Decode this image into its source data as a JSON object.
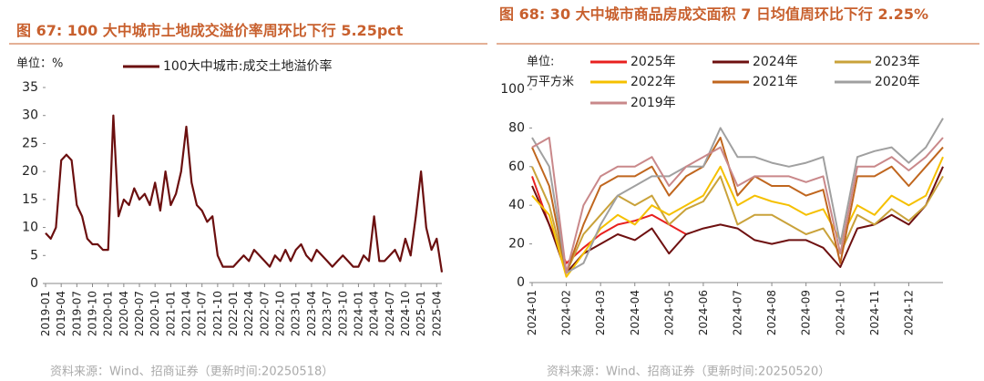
{
  "chart_data": [
    {
      "type": "line",
      "title": "图 67: 100 大中城市土地成交溢价率周环比下行 5.25pct",
      "unit": "单位：%",
      "source": "资料来源：Wind、招商证券（更新时间:20250518）",
      "categories": [
        "2019-01",
        null,
        null,
        "2019-04",
        null,
        null,
        "2019-07",
        null,
        null,
        "2019-10",
        null,
        null,
        "2020-01",
        null,
        null,
        "2020-04",
        null,
        null,
        "2020-07",
        null,
        null,
        "2020-10",
        null,
        null,
        "2021-01",
        null,
        null,
        "2021-04",
        null,
        null,
        "2021-07",
        null,
        null,
        "2021-10",
        null,
        null,
        "2022-01",
        null,
        null,
        "2022-04",
        null,
        null,
        "2022-07",
        null,
        null,
        "2022-10",
        null,
        null,
        "2023-01",
        null,
        null,
        "2023-04",
        null,
        null,
        "2023-07",
        null,
        null,
        "2023-10",
        null,
        null,
        "2024-01",
        null,
        null,
        "2024-04",
        null,
        null,
        "2024-07",
        null,
        null,
        "2024-10",
        null,
        null,
        "2025-01",
        null,
        null,
        "2025-04",
        null
      ],
      "series": [
        {
          "name": "100大中城市:成交土地溢价率",
          "color": "#6b0f0f",
          "values": [
            9,
            8,
            10,
            22,
            23,
            22,
            14,
            12,
            8,
            7,
            7,
            6,
            6,
            30,
            12,
            15,
            14,
            17,
            15,
            16,
            14,
            18,
            13,
            20,
            14,
            16,
            20,
            28,
            18,
            14,
            13,
            11,
            12,
            5,
            3,
            3,
            3,
            4,
            5,
            4,
            6,
            5,
            4,
            3,
            5,
            4,
            6,
            4,
            6,
            7,
            5,
            4,
            6,
            5,
            4,
            3,
            4,
            5,
            4,
            3,
            3,
            5,
            4,
            12,
            4,
            4,
            5,
            6,
            4,
            8,
            5,
            12,
            20,
            10,
            6,
            8,
            2
          ]
        }
      ],
      "ylim": [
        0,
        35
      ],
      "yticks": [
        0,
        5,
        10,
        15,
        20,
        25,
        30,
        35
      ]
    },
    {
      "type": "line",
      "title": "图 68:  30 大中城市商品房成交面积 7 日均值周环比下行 2.25%",
      "unit": "单位:",
      "unit2": "万平方米",
      "source": "资料来源：Wind、招商证券（更新时间:20250520）",
      "categories": [
        "2024-01",
        null,
        "2024-02",
        null,
        "2024-03",
        null,
        "2024-04",
        null,
        "2024-05",
        null,
        "2024-06",
        null,
        "2024-07",
        null,
        "2024-08",
        null,
        "2024-09",
        null,
        "2024-10",
        null,
        "2024-11",
        null,
        "2024-12",
        null,
        null
      ],
      "series": [
        {
          "name": "2025年",
          "color": "#e8201f",
          "values": [
            55,
            30,
            10,
            18,
            25,
            30,
            32,
            35,
            30,
            25,
            null,
            null,
            null,
            null,
            null,
            null,
            null,
            null,
            null,
            null,
            null,
            null,
            null,
            null,
            null
          ]
        },
        {
          "name": "2024年",
          "color": "#6e1010",
          "values": [
            50,
            30,
            5,
            15,
            20,
            25,
            22,
            28,
            15,
            25,
            28,
            30,
            28,
            22,
            20,
            22,
            22,
            18,
            8,
            28,
            30,
            35,
            30,
            40,
            60
          ]
        },
        {
          "name": "2023年",
          "color": "#c9a23a",
          "values": [
            60,
            40,
            5,
            25,
            35,
            45,
            40,
            45,
            30,
            38,
            42,
            55,
            30,
            35,
            35,
            30,
            25,
            28,
            15,
            35,
            30,
            38,
            32,
            40,
            55
          ]
        },
        {
          "name": "2022年",
          "color": "#f5c000",
          "values": [
            45,
            35,
            3,
            15,
            28,
            35,
            30,
            40,
            35,
            40,
            45,
            60,
            40,
            45,
            42,
            40,
            35,
            38,
            22,
            40,
            35,
            45,
            40,
            45,
            65
          ]
        },
        {
          "name": "2021年",
          "color": "#c0661e",
          "values": [
            70,
            50,
            5,
            30,
            50,
            55,
            55,
            60,
            45,
            55,
            60,
            75,
            45,
            55,
            50,
            50,
            45,
            48,
            10,
            55,
            55,
            60,
            50,
            60,
            70
          ]
        },
        {
          "name": "2020年",
          "color": "#a0a0a0",
          "values": [
            75,
            60,
            5,
            10,
            30,
            45,
            50,
            55,
            55,
            60,
            60,
            80,
            65,
            65,
            62,
            60,
            62,
            65,
            20,
            65,
            68,
            70,
            62,
            70,
            85
          ]
        },
        {
          "name": "2019年",
          "color": "#c9888a",
          "values": [
            70,
            75,
            5,
            40,
            55,
            60,
            60,
            65,
            50,
            60,
            65,
            70,
            50,
            55,
            55,
            55,
            52,
            55,
            15,
            60,
            60,
            65,
            58,
            65,
            75
          ]
        }
      ],
      "ylim": [
        0,
        100
      ],
      "yticks": [
        0,
        20,
        40,
        60,
        80,
        100
      ]
    }
  ]
}
